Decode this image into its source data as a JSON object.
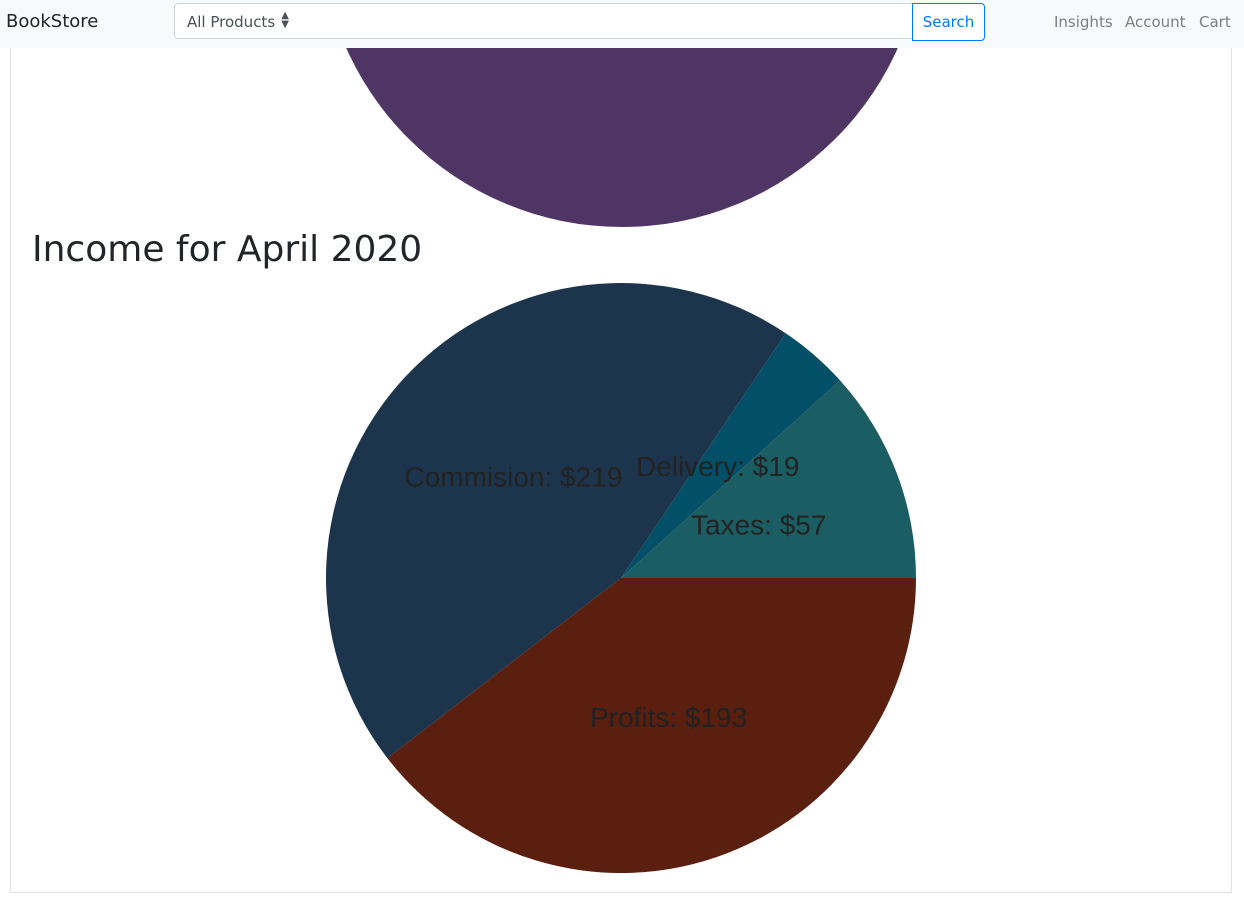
{
  "navbar": {
    "brand": "BookStore",
    "category_select": "All Products",
    "search_placeholder": "",
    "search_button": "Search",
    "links": [
      "Insights",
      "Account",
      "Cart"
    ]
  },
  "top_chart": {
    "color": "#4e3563"
  },
  "main": {
    "heading": "Income for April 2020"
  },
  "chart_data": {
    "type": "pie",
    "title": "Income for April 2020",
    "labels": [
      "Taxes: $57",
      "Delivery: $19",
      "Commision: $219",
      "Profits: $193"
    ],
    "categories": [
      "Taxes",
      "Delivery",
      "Commision",
      "Profits"
    ],
    "values": [
      57,
      19,
      219,
      193
    ],
    "colors": [
      "#1a5e63",
      "#034f67",
      "#1d354c",
      "#5a1f0f"
    ]
  }
}
